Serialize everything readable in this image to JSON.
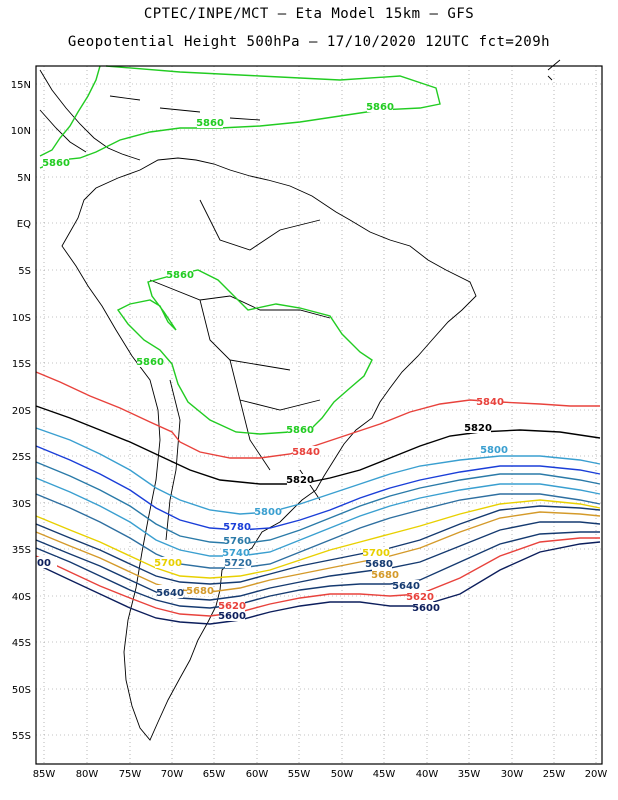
{
  "title_line1": "CPTEC/INPE/MCT –  Eta Model 15km – GFS",
  "title_line2": "Geopotential Height 500hPa – 17/10/2020 12UTC fct=209h",
  "lat_labels": [
    "15N",
    "10N",
    "5N",
    "EQ",
    "5S",
    "10S",
    "15S",
    "20S",
    "25S",
    "30S",
    "35S",
    "40S",
    "45S",
    "50S",
    "55S"
  ],
  "lon_labels": [
    "85W",
    "80W",
    "75W",
    "70W",
    "65W",
    "60W",
    "55W",
    "50W",
    "45W",
    "40W",
    "35W",
    "30W",
    "25W",
    "20W"
  ],
  "contour_labels": [
    {
      "text": "5860",
      "color": "#22cc22"
    },
    {
      "text": "5860",
      "color": "#22cc22"
    },
    {
      "text": "5860",
      "color": "#22cc22"
    },
    {
      "text": "5860",
      "color": "#22cc22"
    },
    {
      "text": "5860",
      "color": "#22cc22"
    },
    {
      "text": "5860",
      "color": "#22cc22"
    },
    {
      "text": "5840",
      "color": "#e8423c"
    },
    {
      "text": "5840",
      "color": "#e8423c"
    },
    {
      "text": "5820",
      "color": "#000000"
    },
    {
      "text": "5820",
      "color": "#000000"
    },
    {
      "text": "5800",
      "color": "#3a9fd0"
    },
    {
      "text": "5800",
      "color": "#3a9fd0"
    },
    {
      "text": "5780",
      "color": "#1a3ed8"
    },
    {
      "text": "5760",
      "color": "#2a7aa8"
    },
    {
      "text": "5740",
      "color": "#3a9fd0"
    },
    {
      "text": "5720",
      "color": "#2e6fa0"
    },
    {
      "text": "5700",
      "color": "#e8d000"
    },
    {
      "text": "5700",
      "color": "#e8d000"
    },
    {
      "text": "5680",
      "color": "#153a70"
    },
    {
      "text": "5680",
      "color": "#d49a2a"
    },
    {
      "text": "5680",
      "color": "#d49a2a"
    },
    {
      "text": "5660",
      "color": "#153a70"
    },
    {
      "text": "5640",
      "color": "#153a70"
    },
    {
      "text": "5640",
      "color": "#153a70"
    },
    {
      "text": "5620",
      "color": "#e8423c"
    },
    {
      "text": "5620",
      "color": "#e8423c"
    },
    {
      "text": "5600",
      "color": "#0c1e5c"
    },
    {
      "text": "5600",
      "color": "#0c1e5c"
    },
    {
      "text": "00",
      "color": "#0c1e5c"
    }
  ],
  "colors": {
    "green": "#22cc22",
    "red": "#e8423c",
    "black": "#000000",
    "teal": "#3a9fd0",
    "blue": "#1a3ed8",
    "yellow": "#e8d000",
    "orange": "#d49a2a",
    "navy": "#0c1e5c"
  }
}
